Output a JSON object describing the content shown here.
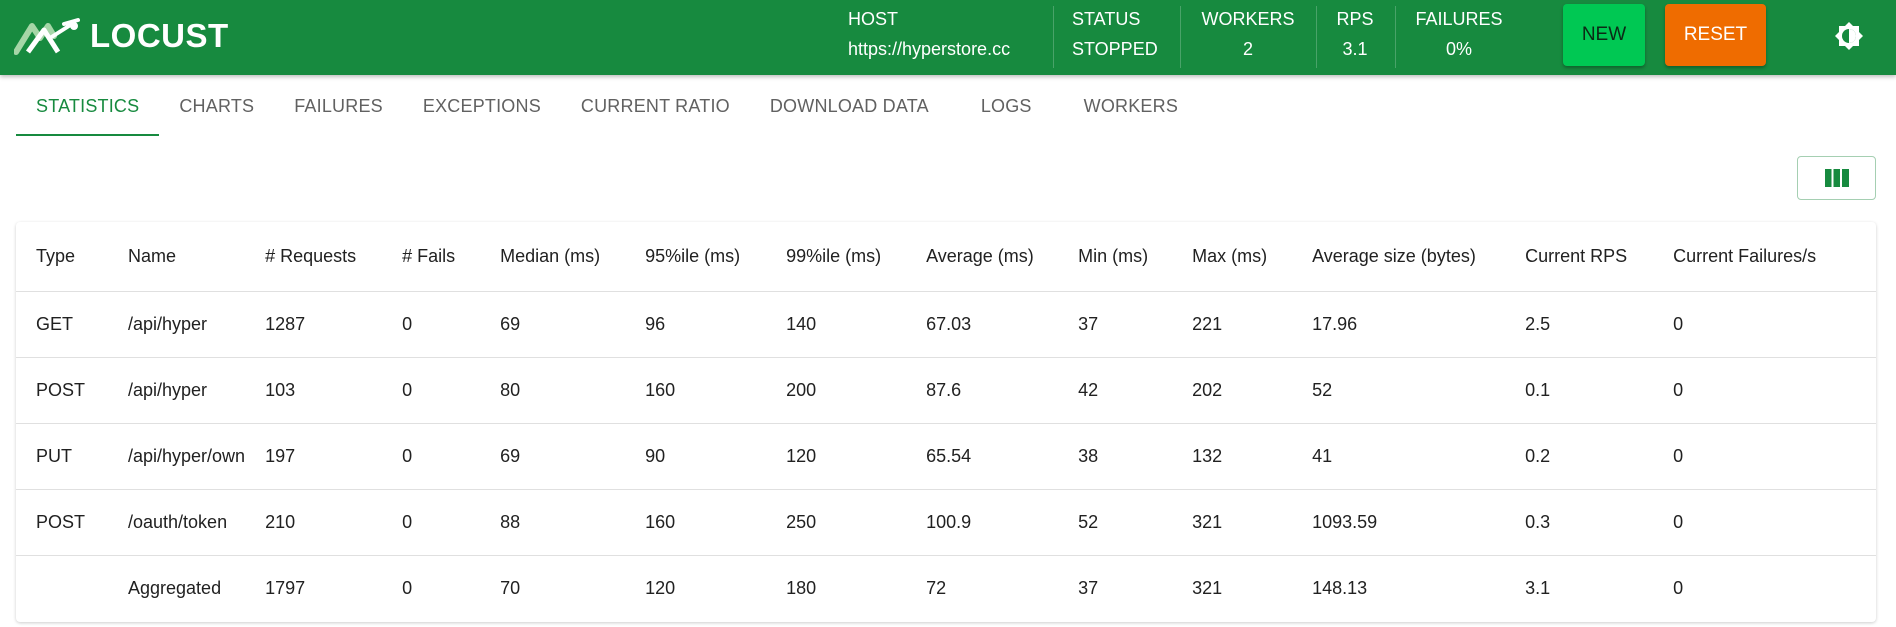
{
  "app": {
    "name": "LOCUST"
  },
  "header": {
    "host": {
      "label": "HOST",
      "value": "https://hyperstore.cc"
    },
    "status": {
      "label": "STATUS",
      "value": "STOPPED"
    },
    "workers": {
      "label": "WORKERS",
      "value": "2"
    },
    "rps": {
      "label": "RPS",
      "value": "3.1"
    },
    "failures": {
      "label": "FAILURES",
      "value": "0%"
    },
    "new_label": "NEW",
    "reset_label": "RESET"
  },
  "tabs": [
    "STATISTICS",
    "CHARTS",
    "FAILURES",
    "EXCEPTIONS",
    "CURRENT RATIO",
    "DOWNLOAD DATA",
    "LOGS",
    "WORKERS"
  ],
  "colors": {
    "brand": "#178a3f",
    "new": "#00c853",
    "reset": "#ef6c00"
  },
  "icons": {
    "logo": "locust-logo-icon",
    "theme": "brightness-icon",
    "columns": "view-column-icon"
  },
  "table": {
    "headers": [
      "Type",
      "Name",
      "# Requests",
      "# Fails",
      "Median (ms)",
      "95%ile (ms)",
      "99%ile (ms)",
      "Average (ms)",
      "Min (ms)",
      "Max (ms)",
      "Average size (bytes)",
      "Current RPS",
      "Current Failures/s"
    ],
    "rows": [
      [
        "GET",
        "/api/hyper",
        "1287",
        "0",
        "69",
        "96",
        "140",
        "67.03",
        "37",
        "221",
        "17.96",
        "2.5",
        "0"
      ],
      [
        "POST",
        "/api/hyper",
        "103",
        "0",
        "80",
        "160",
        "200",
        "87.6",
        "42",
        "202",
        "52",
        "0.1",
        "0"
      ],
      [
        "PUT",
        "/api/hyper/own",
        "197",
        "0",
        "69",
        "90",
        "120",
        "65.54",
        "38",
        "132",
        "41",
        "0.2",
        "0"
      ],
      [
        "POST",
        "/oauth/token",
        "210",
        "0",
        "88",
        "160",
        "250",
        "100.9",
        "52",
        "321",
        "1093.59",
        "0.3",
        "0"
      ],
      [
        "",
        "Aggregated",
        "1797",
        "0",
        "70",
        "120",
        "180",
        "72",
        "37",
        "321",
        "148.13",
        "3.1",
        "0"
      ]
    ]
  }
}
